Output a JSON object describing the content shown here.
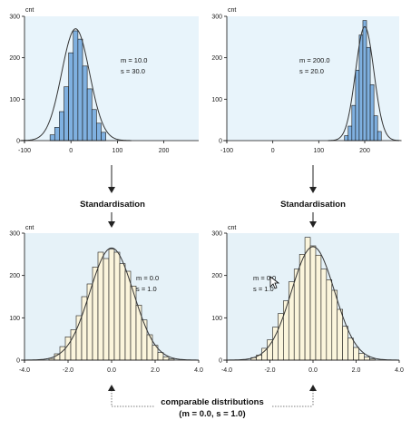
{
  "steps": {
    "standardisation_left": "Standardisation",
    "standardisation_right": "Standardisation"
  },
  "footer": {
    "line1": "comparable distributions",
    "line2": "(m = 0.0, s = 1.0)"
  },
  "colors": {
    "panel_top": "#e8f4fb",
    "panel_bottom": "#e6f2f8",
    "bar_top": "#7fb0e0",
    "bar_bottom": "#fbf5dc",
    "curve": "#333333"
  },
  "chart_data": [
    {
      "type": "bar",
      "ylabel": "cnt",
      "yticks": [
        "0",
        "100",
        "200",
        "300"
      ],
      "ylim": [
        0,
        300
      ],
      "xticks": [
        "-100",
        "0",
        "100",
        "200"
      ],
      "xlim": [
        -100,
        275
      ],
      "annotations": [
        "m = 10.0",
        "s = 30.0"
      ],
      "bin_width": 10,
      "bins": [
        {
          "x": -40,
          "value": 14
        },
        {
          "x": -30,
          "value": 32
        },
        {
          "x": -20,
          "value": 70
        },
        {
          "x": -10,
          "value": 130
        },
        {
          "x": 0,
          "value": 212
        },
        {
          "x": 10,
          "value": 265
        },
        {
          "x": 20,
          "value": 245
        },
        {
          "x": 30,
          "value": 180
        },
        {
          "x": 40,
          "value": 125
        },
        {
          "x": 50,
          "value": 75
        },
        {
          "x": 60,
          "value": 42
        },
        {
          "x": 70,
          "value": 20
        }
      ],
      "curve": {
        "mean": 10,
        "sd": 30,
        "peak": 270
      }
    },
    {
      "type": "bar",
      "ylabel": "cnt",
      "yticks": [
        "0",
        "100",
        "200",
        "300"
      ],
      "ylim": [
        0,
        300
      ],
      "xticks": [
        "-100",
        "0",
        "100",
        "200"
      ],
      "xlim": [
        -100,
        275
      ],
      "annotations": [
        "m = 200.0",
        "s = 20.0"
      ],
      "bin_width": 8,
      "bins": [
        {
          "x": 160,
          "value": 12
        },
        {
          "x": 168,
          "value": 35
        },
        {
          "x": 176,
          "value": 85
        },
        {
          "x": 184,
          "value": 170
        },
        {
          "x": 192,
          "value": 255
        },
        {
          "x": 200,
          "value": 290
        },
        {
          "x": 208,
          "value": 225
        },
        {
          "x": 216,
          "value": 135
        },
        {
          "x": 224,
          "value": 60
        },
        {
          "x": 232,
          "value": 22
        }
      ],
      "curve": {
        "mean": 200,
        "sd": 20,
        "peak": 275
      }
    },
    {
      "type": "bar",
      "ylabel": "cnt",
      "yticks": [
        "0",
        "100",
        "200",
        "300"
      ],
      "ylim": [
        0,
        300
      ],
      "xticks": [
        "-4.0",
        "-2.0",
        "0.0",
        "2.0",
        "4.0"
      ],
      "xlim": [
        -4,
        4
      ],
      "annotations": [
        "m = 0.0",
        "s = 1.0"
      ],
      "bin_width": 0.25,
      "bins": [
        {
          "x": -2.75,
          "value": 4
        },
        {
          "x": -2.5,
          "value": 15
        },
        {
          "x": -2.25,
          "value": 32
        },
        {
          "x": -2.0,
          "value": 55
        },
        {
          "x": -1.75,
          "value": 72
        },
        {
          "x": -1.5,
          "value": 105
        },
        {
          "x": -1.25,
          "value": 150
        },
        {
          "x": -1.0,
          "value": 180
        },
        {
          "x": -0.75,
          "value": 220
        },
        {
          "x": -0.5,
          "value": 255
        },
        {
          "x": -0.25,
          "value": 240
        },
        {
          "x": 0.0,
          "value": 262
        },
        {
          "x": 0.25,
          "value": 255
        },
        {
          "x": 0.5,
          "value": 228
        },
        {
          "x": 0.75,
          "value": 210
        },
        {
          "x": 1.0,
          "value": 175
        },
        {
          "x": 1.25,
          "value": 130
        },
        {
          "x": 1.5,
          "value": 95
        },
        {
          "x": 1.75,
          "value": 60
        },
        {
          "x": 2.0,
          "value": 35
        },
        {
          "x": 2.25,
          "value": 18
        },
        {
          "x": 2.5,
          "value": 8
        },
        {
          "x": 2.75,
          "value": 3
        }
      ],
      "curve": {
        "mean": 0,
        "sd": 1,
        "peak": 265
      }
    },
    {
      "type": "bar",
      "ylabel": "cnt",
      "yticks": [
        "0",
        "100",
        "200",
        "300"
      ],
      "ylim": [
        0,
        300
      ],
      "xticks": [
        "-4.0",
        "-2.0",
        "0.0",
        "2.0",
        "4.0"
      ],
      "xlim": [
        -4,
        4
      ],
      "annotations": [
        "m = 0.0",
        "s = 1.0"
      ],
      "bin_width": 0.25,
      "bins": [
        {
          "x": -2.75,
          "value": 6
        },
        {
          "x": -2.5,
          "value": 12
        },
        {
          "x": -2.25,
          "value": 28
        },
        {
          "x": -2.0,
          "value": 48
        },
        {
          "x": -1.75,
          "value": 78
        },
        {
          "x": -1.5,
          "value": 110
        },
        {
          "x": -1.25,
          "value": 140
        },
        {
          "x": -1.0,
          "value": 185
        },
        {
          "x": -0.75,
          "value": 215
        },
        {
          "x": -0.5,
          "value": 250
        },
        {
          "x": -0.25,
          "value": 290
        },
        {
          "x": 0.0,
          "value": 270
        },
        {
          "x": 0.25,
          "value": 248
        },
        {
          "x": 0.5,
          "value": 215
        },
        {
          "x": 0.75,
          "value": 190
        },
        {
          "x": 1.0,
          "value": 165
        },
        {
          "x": 1.25,
          "value": 120
        },
        {
          "x": 1.5,
          "value": 80
        },
        {
          "x": 1.75,
          "value": 52
        },
        {
          "x": 2.0,
          "value": 30
        },
        {
          "x": 2.25,
          "value": 16
        },
        {
          "x": 2.5,
          "value": 7
        },
        {
          "x": 2.75,
          "value": 3
        }
      ],
      "curve": {
        "mean": 0,
        "sd": 1,
        "peak": 268
      }
    }
  ]
}
